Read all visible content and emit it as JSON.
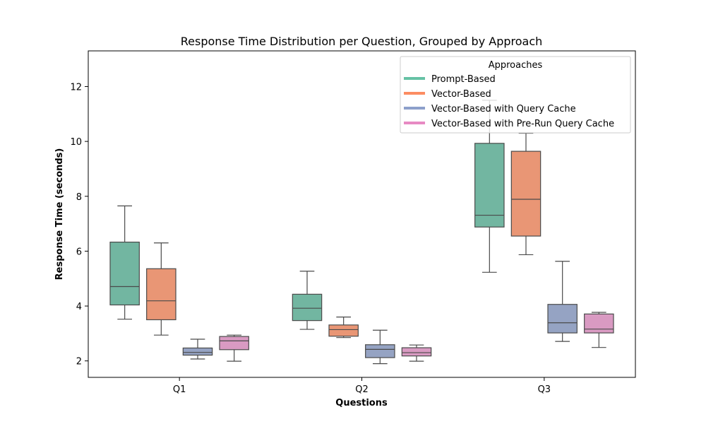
{
  "chart_data": {
    "type": "box",
    "title": "Response Time Distribution per Question, Grouped by Approach",
    "xlabel": "Questions",
    "ylabel": "Response Time (seconds)",
    "ylim": [
      1.4,
      13.3
    ],
    "yticks": [
      2,
      4,
      6,
      8,
      10,
      12
    ],
    "categories": [
      "Q1",
      "Q2",
      "Q3"
    ],
    "grid": false,
    "legend": {
      "title": "Approaches",
      "placement": "top-right"
    },
    "series": [
      {
        "name": "Prompt-Based",
        "color": "#66c2a5",
        "box_color": "#72b6a1",
        "boxes": [
          {
            "whisker_low": 3.52,
            "q1": 4.04,
            "median": 4.71,
            "q3": 6.33,
            "whisker_high": 7.65
          },
          {
            "whisker_low": 3.15,
            "q1": 3.47,
            "median": 3.92,
            "q3": 4.43,
            "whisker_high": 5.27
          },
          {
            "whisker_low": 5.23,
            "q1": 6.88,
            "median": 7.31,
            "q3": 9.93,
            "whisker_high": 11.5
          }
        ]
      },
      {
        "name": "Vector-Based",
        "color": "#fc8d62",
        "box_color": "#e99675",
        "boxes": [
          {
            "whisker_low": 2.94,
            "q1": 3.5,
            "median": 4.19,
            "q3": 5.36,
            "whisker_high": 6.3
          },
          {
            "whisker_low": 2.85,
            "q1": 2.9,
            "median": 3.14,
            "q3": 3.31,
            "whisker_high": 3.6
          },
          {
            "whisker_low": 5.87,
            "q1": 6.55,
            "median": 7.89,
            "q3": 9.64,
            "whisker_high": 10.3
          }
        ]
      },
      {
        "name": "Vector-Based with Query Cache",
        "color": "#8da0cb",
        "box_color": "#95a3c3",
        "boxes": [
          {
            "whisker_low": 2.07,
            "q1": 2.21,
            "median": 2.31,
            "q3": 2.47,
            "whisker_high": 2.79
          },
          {
            "whisker_low": 1.9,
            "q1": 2.12,
            "median": 2.42,
            "q3": 2.59,
            "whisker_high": 3.12
          },
          {
            "whisker_low": 2.71,
            "q1": 3.02,
            "median": 3.39,
            "q3": 4.06,
            "whisker_high": 5.63
          }
        ]
      },
      {
        "name": "Vector-Based with Pre-Run Query Cache",
        "color": "#e78ac3",
        "box_color": "#d99ac2",
        "boxes": [
          {
            "whisker_low": 1.99,
            "q1": 2.41,
            "median": 2.73,
            "q3": 2.89,
            "whisker_high": 2.94
          },
          {
            "whisker_low": 1.99,
            "q1": 2.18,
            "median": 2.3,
            "q3": 2.48,
            "whisker_high": 2.58
          },
          {
            "whisker_low": 2.49,
            "q1": 3.02,
            "median": 3.16,
            "q3": 3.71,
            "whisker_high": 3.77
          }
        ]
      }
    ]
  }
}
